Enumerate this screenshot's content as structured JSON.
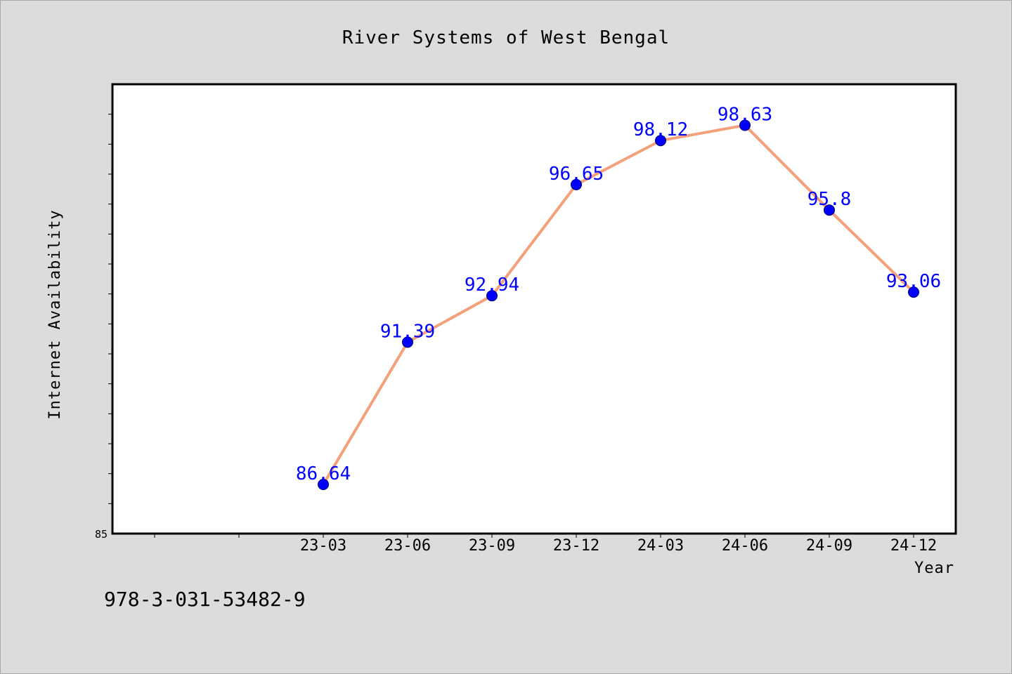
{
  "chart_data": {
    "type": "line",
    "title": "River Systems of West Bengal",
    "xlabel": "Year",
    "ylabel": "Internet Availability",
    "categories": [
      "23-03",
      "23-06",
      "23-09",
      "23-12",
      "24-03",
      "24-06",
      "24-09",
      "24-12"
    ],
    "series": [
      {
        "values": [
          86.64,
          91.39,
          92.94,
          96.65,
          98.12,
          98.63,
          95.8,
          93.06
        ],
        "data_labels": [
          "86.64",
          "91.39",
          "92.94",
          "96.65",
          "98.12",
          "98.63",
          "95.8",
          "93.06"
        ]
      }
    ],
    "ylim": [
      85,
      100
    ],
    "yticks_labeled": [
      "85"
    ],
    "grid": false,
    "legend": "none",
    "colors": {
      "line": "#f4a07a",
      "marker": "#0000ff",
      "data_label": "#0000ff",
      "background": "#dcdcdc",
      "plot_background": "#ffffff"
    }
  },
  "footer": {
    "isbn": "978-3-031-53482-9"
  }
}
